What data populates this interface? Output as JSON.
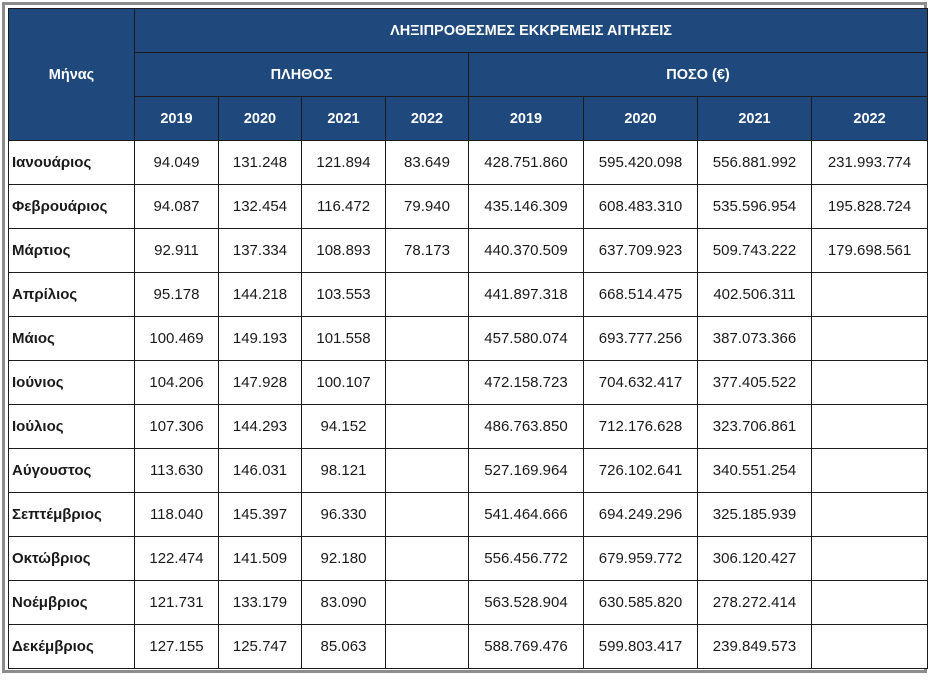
{
  "table": {
    "title": "ΛΗΞΙΠΡΟΘΕΣΜΕΣ ΕΚΚΡΕΜΕΙΣ ΑΙΤΗΣΕΙΣ",
    "month_header": "Μήνας",
    "group_count": "ΠΛΗΘΟΣ",
    "group_amount": "ΠΟΣΟ (€)",
    "years": [
      "2019",
      "2020",
      "2021",
      "2022"
    ],
    "header_color": "#1f497d",
    "rows": [
      {
        "month": "Ιανουάριος",
        "count": [
          "94.049",
          "131.248",
          "121.894",
          "83.649"
        ],
        "amount": [
          "428.751.860",
          "595.420.098",
          "556.881.992",
          "231.993.774"
        ]
      },
      {
        "month": "Φεβρουάριος",
        "count": [
          "94.087",
          "132.454",
          "116.472",
          "79.940"
        ],
        "amount": [
          "435.146.309",
          "608.483.310",
          "535.596.954",
          "195.828.724"
        ]
      },
      {
        "month": "Μάρτιος",
        "count": [
          "92.911",
          "137.334",
          "108.893",
          "78.173"
        ],
        "amount": [
          "440.370.509",
          "637.709.923",
          "509.743.222",
          "179.698.561"
        ]
      },
      {
        "month": "Απρίλιος",
        "count": [
          "95.178",
          "144.218",
          "103.553",
          ""
        ],
        "amount": [
          "441.897.318",
          "668.514.475",
          "402.506.311",
          ""
        ]
      },
      {
        "month": "Μάιος",
        "count": [
          "100.469",
          "149.193",
          "101.558",
          ""
        ],
        "amount": [
          "457.580.074",
          "693.777.256",
          "387.073.366",
          ""
        ]
      },
      {
        "month": "Ιούνιος",
        "count": [
          "104.206",
          "147.928",
          "100.107",
          ""
        ],
        "amount": [
          "472.158.723",
          "704.632.417",
          "377.405.522",
          ""
        ]
      },
      {
        "month": "Ιούλιος",
        "count": [
          "107.306",
          "144.293",
          "94.152",
          ""
        ],
        "amount": [
          "486.763.850",
          "712.176.628",
          "323.706.861",
          ""
        ]
      },
      {
        "month": "Αύγουστος",
        "count": [
          "113.630",
          "146.031",
          "98.121",
          ""
        ],
        "amount": [
          "527.169.964",
          "726.102.641",
          "340.551.254",
          ""
        ]
      },
      {
        "month": "Σεπτέμβριος",
        "count": [
          "118.040",
          "145.397",
          "96.330",
          ""
        ],
        "amount": [
          "541.464.666",
          "694.249.296",
          "325.185.939",
          ""
        ]
      },
      {
        "month": "Οκτώβριος",
        "count": [
          "122.474",
          "141.509",
          "92.180",
          ""
        ],
        "amount": [
          "556.456.772",
          "679.959.772",
          "306.120.427",
          ""
        ]
      },
      {
        "month": "Νοέμβριος",
        "count": [
          "121.731",
          "133.179",
          "83.090",
          ""
        ],
        "amount": [
          "563.528.904",
          "630.585.820",
          "278.272.414",
          ""
        ]
      },
      {
        "month": "Δεκέμβριος",
        "count": [
          "127.155",
          "125.747",
          "85.063",
          ""
        ],
        "amount": [
          "588.769.476",
          "599.803.417",
          "239.849.573",
          ""
        ]
      }
    ]
  }
}
